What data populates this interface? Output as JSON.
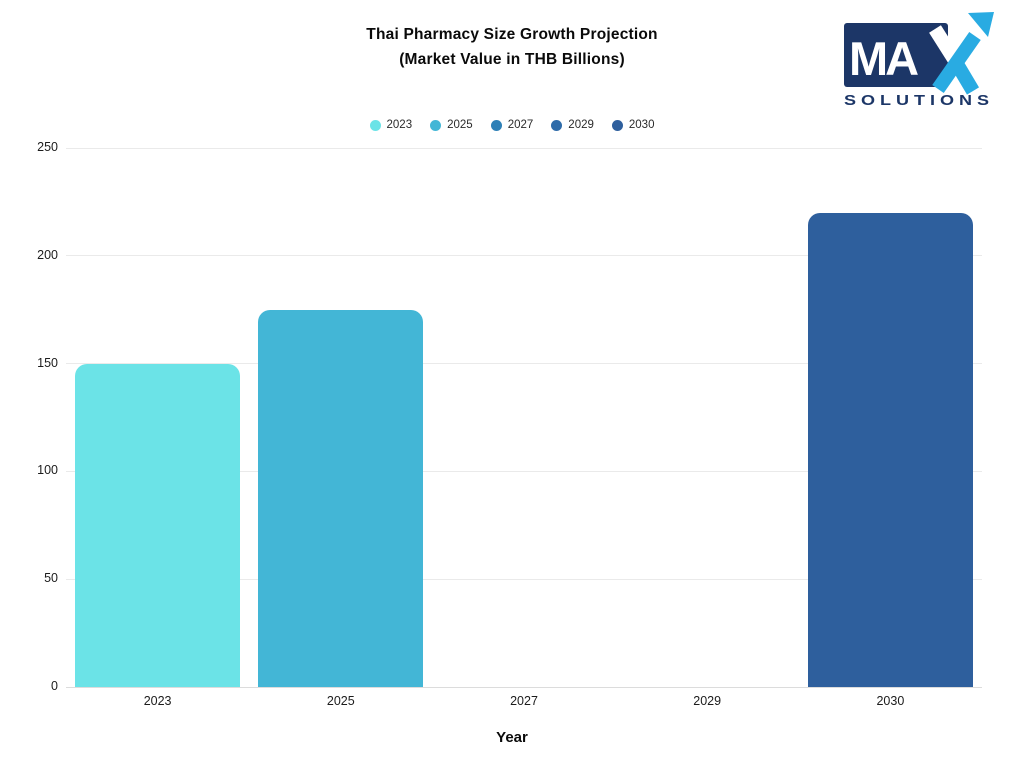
{
  "header": {
    "title_line1": "Thai Pharmacy Size Growth Projection",
    "title_line2": "(Market Value in THB Billions)"
  },
  "logo": {
    "main": "MA",
    "x_letter": "X",
    "sub": "SOLUTIONS",
    "navy_color": "#1C3667",
    "blue_color": "#29ABE2"
  },
  "legend": {
    "items": [
      {
        "label": "2023",
        "color": "#6BE3E7"
      },
      {
        "label": "2025",
        "color": "#43B6D6"
      },
      {
        "label": "2027",
        "color": "#2E80B7"
      },
      {
        "label": "2029",
        "color": "#2E6BA9"
      },
      {
        "label": "2030",
        "color": "#2E5F9D"
      }
    ]
  },
  "chart_data": {
    "type": "bar",
    "title": "Thai Pharmacy Size Growth Projection (Market Value in THB Billions)",
    "categories": [
      "2023",
      "2025",
      "2027",
      "2029",
      "2030"
    ],
    "values": [
      150,
      175,
      0,
      0,
      220
    ],
    "bar_colors": [
      "#6BE3E7",
      "#43B6D6",
      "#2E80B7",
      "#2E6BA9",
      "#2E5F9D"
    ],
    "xlabel": "Year",
    "ylabel": "",
    "ylim": [
      0,
      250
    ],
    "yticks": [
      0,
      50,
      100,
      150,
      200,
      250
    ],
    "grid": true,
    "legend_position": "top",
    "gridline_color": "#eaeaea"
  }
}
